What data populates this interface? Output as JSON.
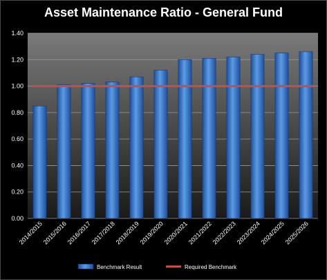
{
  "chart_data": {
    "type": "bar",
    "title": "Asset Maintenance Ratio - General Fund",
    "xlabel": "",
    "ylabel": "",
    "categories": [
      "2014/2015",
      "2015/2016",
      "2016/2017",
      "2017/2018",
      "2018/2019",
      "2019/2020",
      "2020/2021",
      "2021/2022",
      "2022/2023",
      "2023/2024",
      "2024/2025",
      "2025/2026"
    ],
    "series": [
      {
        "name": "Benchmark Result",
        "type": "bar",
        "color": "#3d7fd1",
        "values": [
          0.85,
          1.01,
          1.02,
          1.03,
          1.07,
          1.12,
          1.2,
          1.21,
          1.22,
          1.24,
          1.25,
          1.26
        ]
      },
      {
        "name": "Required Benchmark",
        "type": "line",
        "color": "#c0504d",
        "values": [
          1.0,
          1.0,
          1.0,
          1.0,
          1.0,
          1.0,
          1.0,
          1.0,
          1.0,
          1.0,
          1.0,
          1.0
        ]
      }
    ],
    "ylim": [
      0,
      1.4
    ],
    "yticks": [
      "0.00",
      "0.20",
      "0.40",
      "0.60",
      "0.80",
      "1.00",
      "1.20",
      "1.40"
    ],
    "grid": true,
    "legend": "bottom",
    "colors": {
      "background": "#000000",
      "plot_area_top": "#7a7a7a",
      "plot_area_bottom": "#1a1a1a",
      "gridline": "#9a9a9a",
      "text": "#ffffff"
    }
  }
}
